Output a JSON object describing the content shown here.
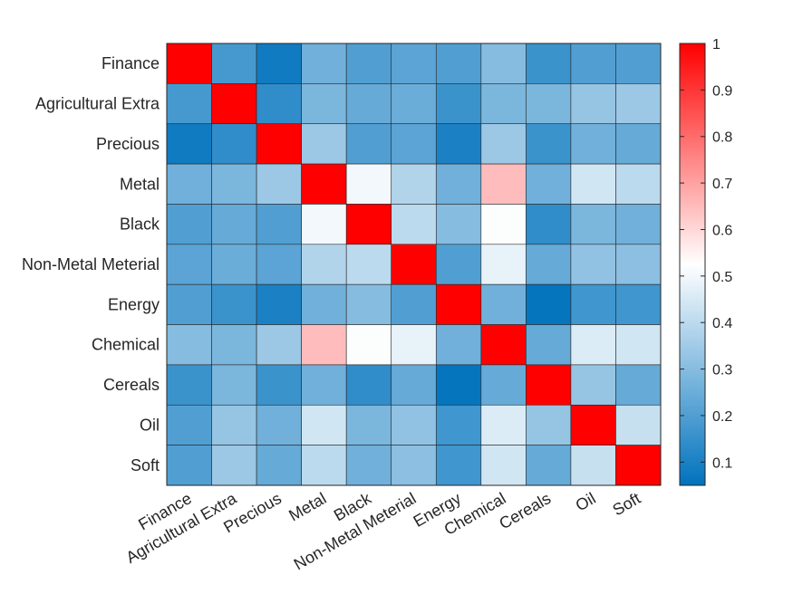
{
  "chart_data": {
    "type": "heatmap",
    "title": "",
    "xlabel": "",
    "ylabel": "",
    "row_labels": [
      "Finance",
      "Agricultural Extra",
      "Precious",
      "Metal",
      "Black",
      "Non-Metal Meterial",
      "Energy",
      "Chemical",
      "Cereals",
      "Oil",
      "Soft"
    ],
    "col_labels": [
      "Finance",
      "Agricultural Extra",
      "Precious",
      "Metal",
      "Black",
      "Non-Metal Meterial",
      "Energy",
      "Chemical",
      "Cereals",
      "Oil",
      "Soft"
    ],
    "values": [
      [
        1.0,
        0.18,
        0.08,
        0.26,
        0.2,
        0.22,
        0.2,
        0.3,
        0.16,
        0.2,
        0.2
      ],
      [
        0.18,
        1.0,
        0.14,
        0.28,
        0.24,
        0.25,
        0.16,
        0.28,
        0.28,
        0.33,
        0.34
      ],
      [
        0.08,
        0.14,
        1.0,
        0.34,
        0.2,
        0.22,
        0.1,
        0.34,
        0.16,
        0.26,
        0.24
      ],
      [
        0.26,
        0.28,
        0.34,
        1.0,
        0.5,
        0.38,
        0.26,
        0.65,
        0.26,
        0.44,
        0.4
      ],
      [
        0.2,
        0.24,
        0.2,
        0.5,
        1.0,
        0.4,
        0.3,
        0.52,
        0.14,
        0.28,
        0.26
      ],
      [
        0.22,
        0.25,
        0.22,
        0.38,
        0.4,
        1.0,
        0.2,
        0.48,
        0.24,
        0.32,
        0.31
      ],
      [
        0.2,
        0.16,
        0.1,
        0.26,
        0.3,
        0.2,
        1.0,
        0.26,
        0.06,
        0.17,
        0.17
      ],
      [
        0.3,
        0.28,
        0.34,
        0.65,
        0.52,
        0.48,
        0.26,
        1.0,
        0.24,
        0.46,
        0.44
      ],
      [
        0.16,
        0.28,
        0.16,
        0.26,
        0.14,
        0.24,
        0.06,
        0.24,
        1.0,
        0.33,
        0.24
      ],
      [
        0.2,
        0.33,
        0.26,
        0.44,
        0.28,
        0.32,
        0.17,
        0.46,
        0.33,
        1.0,
        0.42
      ],
      [
        0.2,
        0.34,
        0.24,
        0.4,
        0.26,
        0.31,
        0.17,
        0.44,
        0.24,
        0.42,
        1.0
      ]
    ],
    "color_range": [
      0.05,
      1.0
    ],
    "colormap": {
      "low": "#0072bd",
      "mid": "#ffffff",
      "high": "#ff0000",
      "mid_value": 0.525
    },
    "colorbar": {
      "ticks": [
        "1",
        "0.9",
        "0.8",
        "0.7",
        "0.6",
        "0.5",
        "0.4",
        "0.3",
        "0.2",
        "0.1"
      ],
      "tick_values": [
        1,
        0.9,
        0.8,
        0.7,
        0.6,
        0.5,
        0.4,
        0.3,
        0.2,
        0.1
      ]
    },
    "grid": true,
    "legend": "colorbar-right"
  }
}
